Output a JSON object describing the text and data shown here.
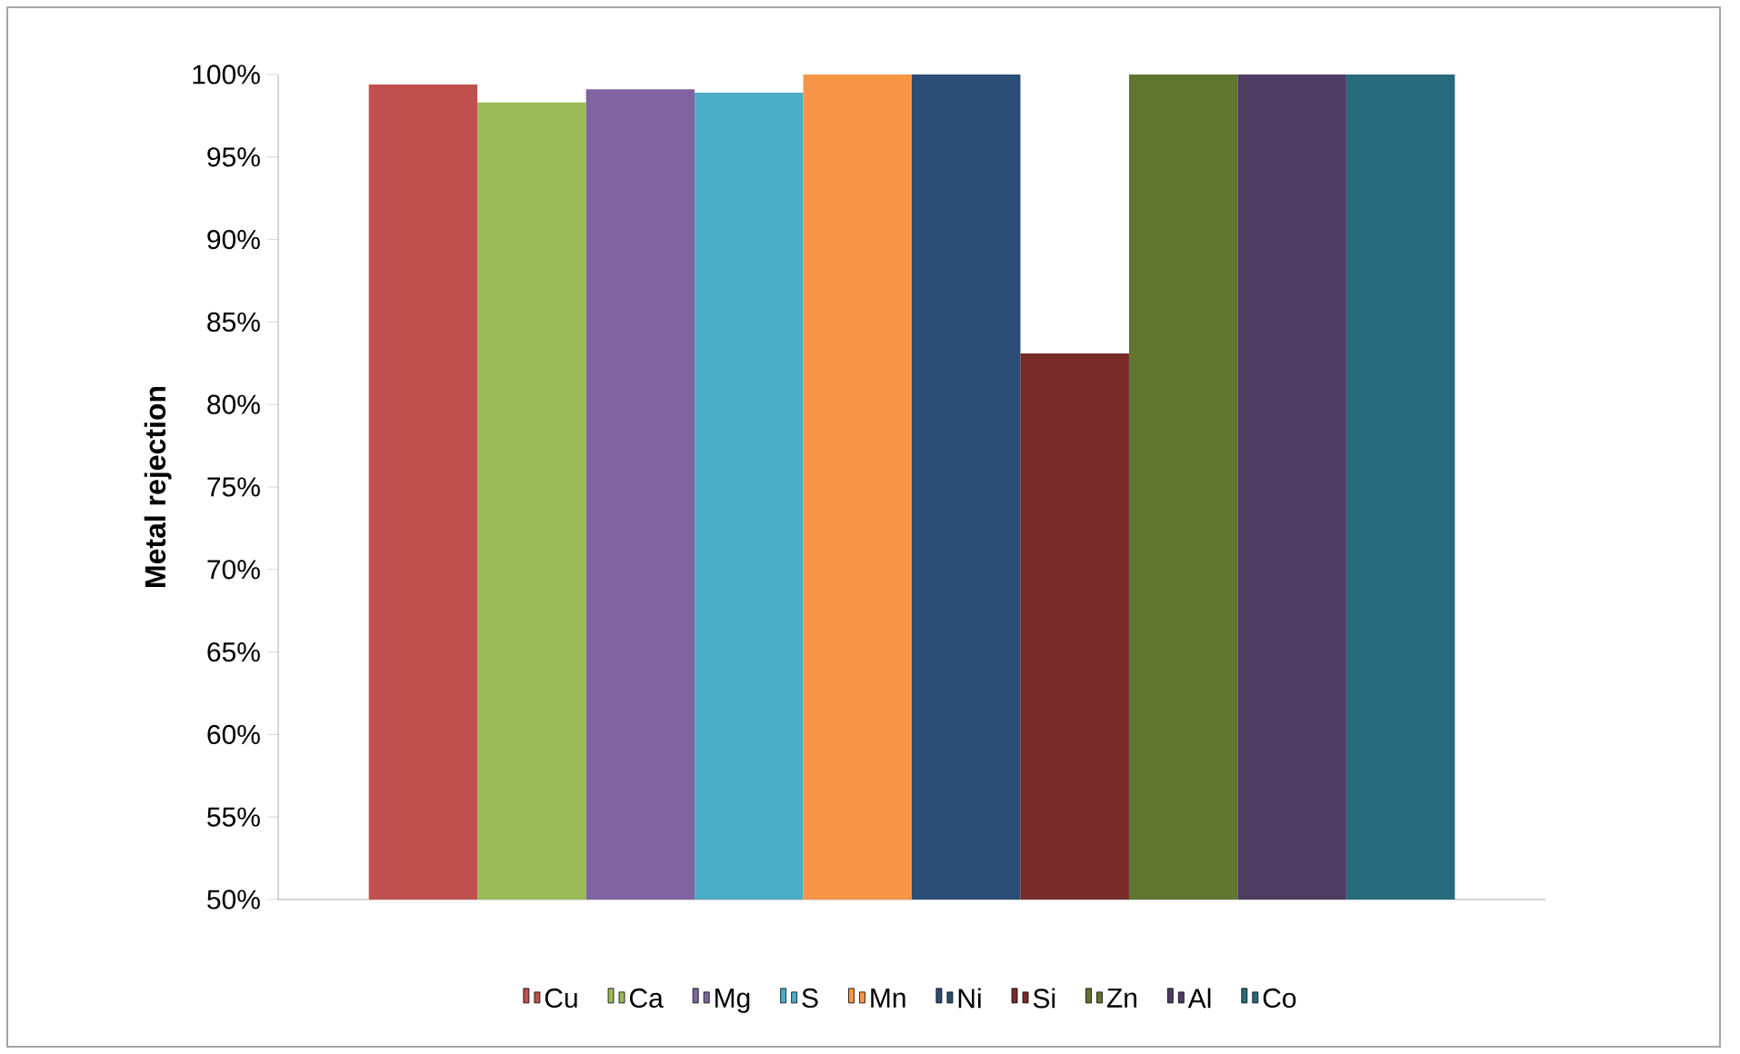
{
  "chart_data": {
    "type": "bar",
    "ylabel": "Metal rejection",
    "categories": [
      null
    ],
    "series": [
      {
        "name": "Cu",
        "color": "#c0504d",
        "values": [
          99.4
        ]
      },
      {
        "name": "Ca",
        "color": "#9bbb59",
        "values": [
          98.3
        ]
      },
      {
        "name": "Mg",
        "color": "#8064a2",
        "values": [
          99.1
        ]
      },
      {
        "name": "S",
        "color": "#4bacc6",
        "values": [
          98.9
        ]
      },
      {
        "name": "Mn",
        "color": "#f79646",
        "values": [
          100
        ]
      },
      {
        "name": "Ni",
        "color": "#2c4d75",
        "values": [
          100
        ]
      },
      {
        "name": "Si",
        "color": "#772c2a",
        "values": [
          83.1
        ]
      },
      {
        "name": "Zn",
        "color": "#5f7530",
        "values": [
          100
        ]
      },
      {
        "name": "Al",
        "color": "#4d3b62",
        "values": [
          100
        ]
      },
      {
        "name": "Co",
        "color": "#276a7c",
        "values": [
          100
        ]
      }
    ],
    "ylim": [
      50,
      100
    ],
    "yticks": [
      {
        "value": 50,
        "label": "50%"
      },
      {
        "value": 55,
        "label": "55%"
      },
      {
        "value": 60,
        "label": "60%"
      },
      {
        "value": 65,
        "label": "65%"
      },
      {
        "value": 70,
        "label": "70%"
      },
      {
        "value": 75,
        "label": "75%"
      },
      {
        "value": 80,
        "label": "80%"
      },
      {
        "value": 85,
        "label": "85%"
      },
      {
        "value": 90,
        "label": "90%"
      },
      {
        "value": 95,
        "label": "95%"
      },
      {
        "value": 100,
        "label": "100%"
      }
    ],
    "legend": "bottom"
  }
}
